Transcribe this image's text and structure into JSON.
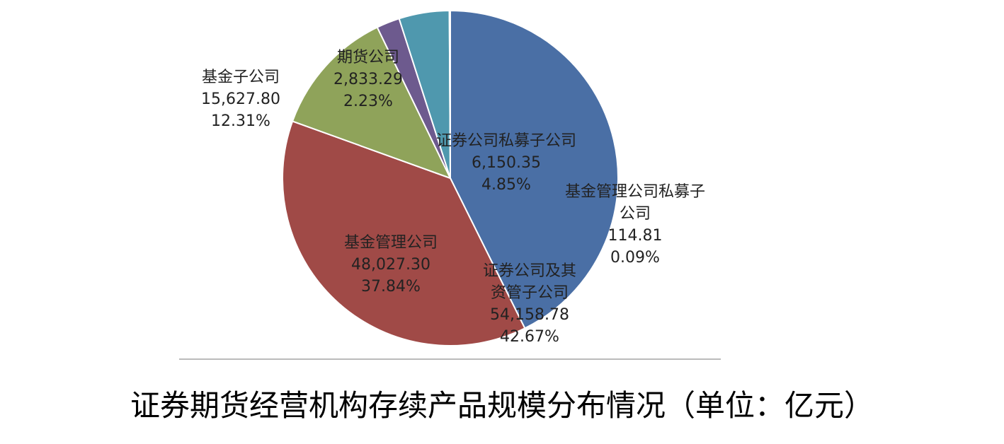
{
  "chart_data": {
    "type": "pie",
    "title": "证券期货经营机构存续产品规模分布情况（单位：亿元）",
    "categories": [
      "证券公司及其资管子公司",
      "基金管理公司",
      "基金子公司",
      "期货公司",
      "证券公司私募子公司",
      "基金管理公司私募子公司"
    ],
    "values": [
      54158.78,
      48027.3,
      15627.8,
      2833.29,
      6150.35,
      114.81
    ],
    "value_labels": [
      "54,158.78",
      "48,027.30",
      "15,627.80",
      "2,833.29",
      "6,150.35",
      "114.81"
    ],
    "percents": [
      42.67,
      37.84,
      12.31,
      2.23,
      4.85,
      0.09
    ],
    "percent_labels": [
      "42.67%",
      "37.84%",
      "12.31%",
      "2.23%",
      "4.85%",
      "0.09%"
    ],
    "colors": [
      "#4a6fa5",
      "#a04a47",
      "#8fa35a",
      "#6d5a8e",
      "#4f98ae",
      "#e0873a"
    ]
  }
}
